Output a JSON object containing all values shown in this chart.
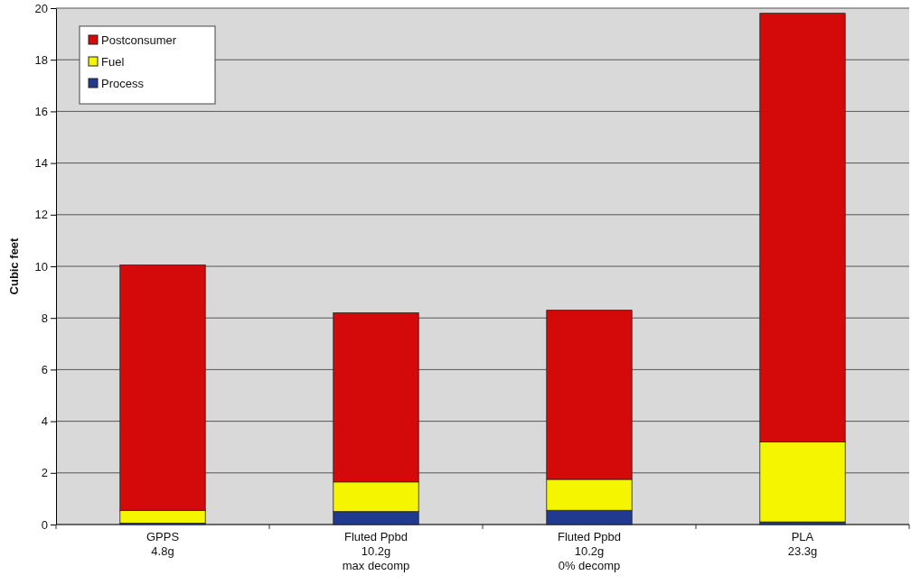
{
  "chart_data": {
    "type": "bar",
    "stacked": true,
    "ylabel": "Cubic feet",
    "categories": [
      "GPPS\n4.8g",
      "Fluted Ppbd\n10.2g\nmax decomp",
      "Fluted Ppbd\n10.2g\n0% decomp",
      "PLA\n23.3g"
    ],
    "series": [
      {
        "name": "Process",
        "color": "#1f3a8f",
        "values": [
          0.05,
          0.5,
          0.55,
          0.1
        ]
      },
      {
        "name": "Fuel",
        "color": "#f5f500",
        "values": [
          0.5,
          1.15,
          1.2,
          3.1
        ]
      },
      {
        "name": "Postconsumer",
        "color": "#d40a0a",
        "values": [
          9.5,
          6.55,
          6.55,
          16.6
        ]
      }
    ],
    "ylim": [
      0,
      20
    ],
    "yticks": [
      0,
      2,
      4,
      6,
      8,
      10,
      12,
      14,
      16,
      18,
      20
    ],
    "grid": "y",
    "legend": "top left"
  }
}
